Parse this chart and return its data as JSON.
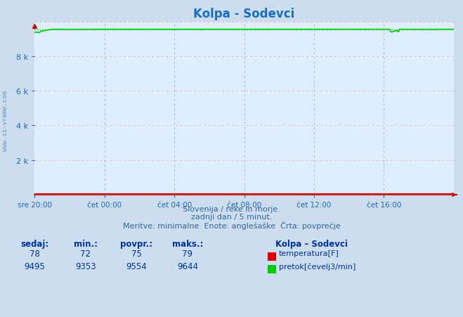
{
  "title": "Kolpa - Sodevci",
  "title_color": "#1a6ebd",
  "bg_color": "#ccddf0",
  "plot_bg_color": "#ddeeff",
  "n_points": 288,
  "xmin": 0,
  "xmax": 287,
  "ymin": 0,
  "ymax": 10000,
  "xtick_labels": [
    "sre 20:00",
    "čet 00:00",
    "čet 04:00",
    "čet 08:00",
    "čet 12:00",
    "čet 16:00"
  ],
  "ytick_vals": [
    2000,
    4000,
    6000,
    8000
  ],
  "ytick_labels": [
    "2 k",
    "4 k",
    "6 k",
    "8 k"
  ],
  "temp_avg": 75,
  "temp_min": 72,
  "temp_max": 79,
  "temp_current": 78,
  "flow_avg": 9554,
  "flow_min": 9353,
  "flow_max": 9644,
  "flow_current": 9495,
  "temp_color": "#dd0000",
  "flow_color": "#00cc00",
  "flow_dot_color": "#00cc00",
  "hgrid_color": "#ffaaaa",
  "vgrid_color": "#aaaadd",
  "axis_color": "#cc0000",
  "tick_color": "#2266aa",
  "watermark": "www.si-vreme.com",
  "footer1": "Slovenija / reke in morje.",
  "footer2": "zadnji dan / 5 minut.",
  "footer3": "Meritve: minimalne  Enote: anglešaške  Črta: povprečje",
  "tbl_headers": [
    "sedaj:",
    "min.:",
    "povpr.:",
    "maks.:"
  ],
  "tbl_row1": [
    "78",
    "72",
    "75",
    "79"
  ],
  "tbl_row2": [
    "9495",
    "9353",
    "9554",
    "9644"
  ],
  "legend_station": "Kolpa – Sodevci",
  "legend_temp_label": "temperatura[F]",
  "legend_flow_label": "pretok[čevelj3/min]",
  "text_color": "#2266aa",
  "table_color": "#003399",
  "footer_color": "#336699"
}
